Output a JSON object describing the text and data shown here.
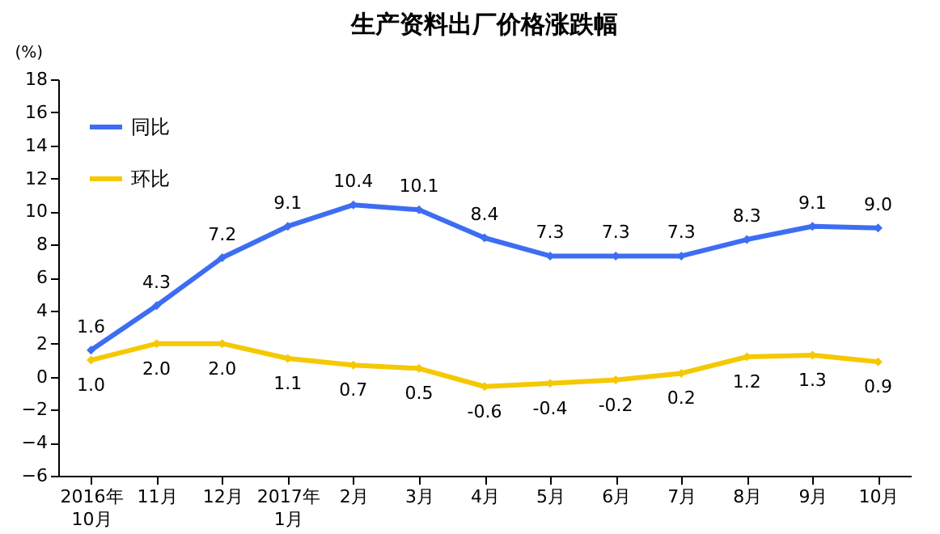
{
  "chart_data": {
    "type": "line",
    "title": "生产资料出厂价格涨跌幅",
    "ylabel": "(%)",
    "categories": [
      "2016年\n10月",
      "11月",
      "12月",
      "2017年\n1月",
      "2月",
      "3月",
      "4月",
      "5月",
      "6月",
      "7月",
      "8月",
      "9月",
      "10月"
    ],
    "series": [
      {
        "name": "同比",
        "color": "#3d6df2",
        "values": [
          1.6,
          4.3,
          7.2,
          9.1,
          10.4,
          10.1,
          8.4,
          7.3,
          7.3,
          7.3,
          8.3,
          9.1,
          9.0
        ],
        "value_labels": [
          "1.6",
          "4.3",
          "7.2",
          "9.1",
          "10.4",
          "10.1",
          "8.4",
          "7.3",
          "7.3",
          "7.3",
          "8.3",
          "9.1",
          "9.0"
        ]
      },
      {
        "name": "环比",
        "color": "#f5c800",
        "values": [
          1.0,
          2.0,
          2.0,
          1.1,
          0.7,
          0.5,
          -0.6,
          -0.4,
          -0.2,
          0.2,
          1.2,
          1.3,
          0.9
        ],
        "value_labels": [
          "1.0",
          "2.0",
          "2.0",
          "1.1",
          "0.7",
          "0.5",
          "-0.6",
          "-0.4",
          "-0.2",
          "0.2",
          "1.2",
          "1.3",
          "0.9"
        ]
      }
    ],
    "ylim": [
      -6,
      18
    ],
    "yticks": [
      -6,
      -4,
      -2,
      0,
      2,
      4,
      6,
      8,
      10,
      12,
      14,
      16,
      18
    ],
    "legend": "top left",
    "grid": false,
    "marker": "diamond",
    "line_style": "solid"
  }
}
